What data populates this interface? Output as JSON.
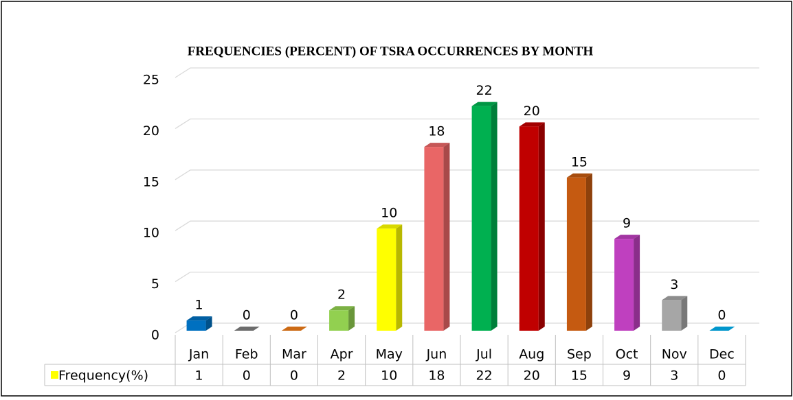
{
  "chart_data": {
    "type": "bar",
    "title": "FREQUENCIES (PERCENT) OF TSRA OCCURRENCES BY MONTH",
    "categories": [
      "Jan",
      "Feb",
      "Mar",
      "Apr",
      "May",
      "Jun",
      "Jul",
      "Aug",
      "Sep",
      "Oct",
      "Nov",
      "Dec"
    ],
    "series": [
      {
        "name": "Frequency(%)",
        "color": "#ffff00",
        "values": [
          1,
          0,
          0,
          2,
          10,
          18,
          22,
          20,
          15,
          9,
          3,
          0
        ]
      }
    ],
    "colors": [
      "#0070c0",
      "#7f7f7f",
      "#f07d17",
      "#92d050",
      "#ffff00",
      "#e96666",
      "#00b050",
      "#c00000",
      "#c55a11",
      "#bf40bf",
      "#a6a6a6",
      "#00b0f0"
    ],
    "ylim": [
      0,
      25
    ],
    "yticks": [
      0,
      5,
      10,
      15,
      20,
      25
    ],
    "grid": true
  }
}
